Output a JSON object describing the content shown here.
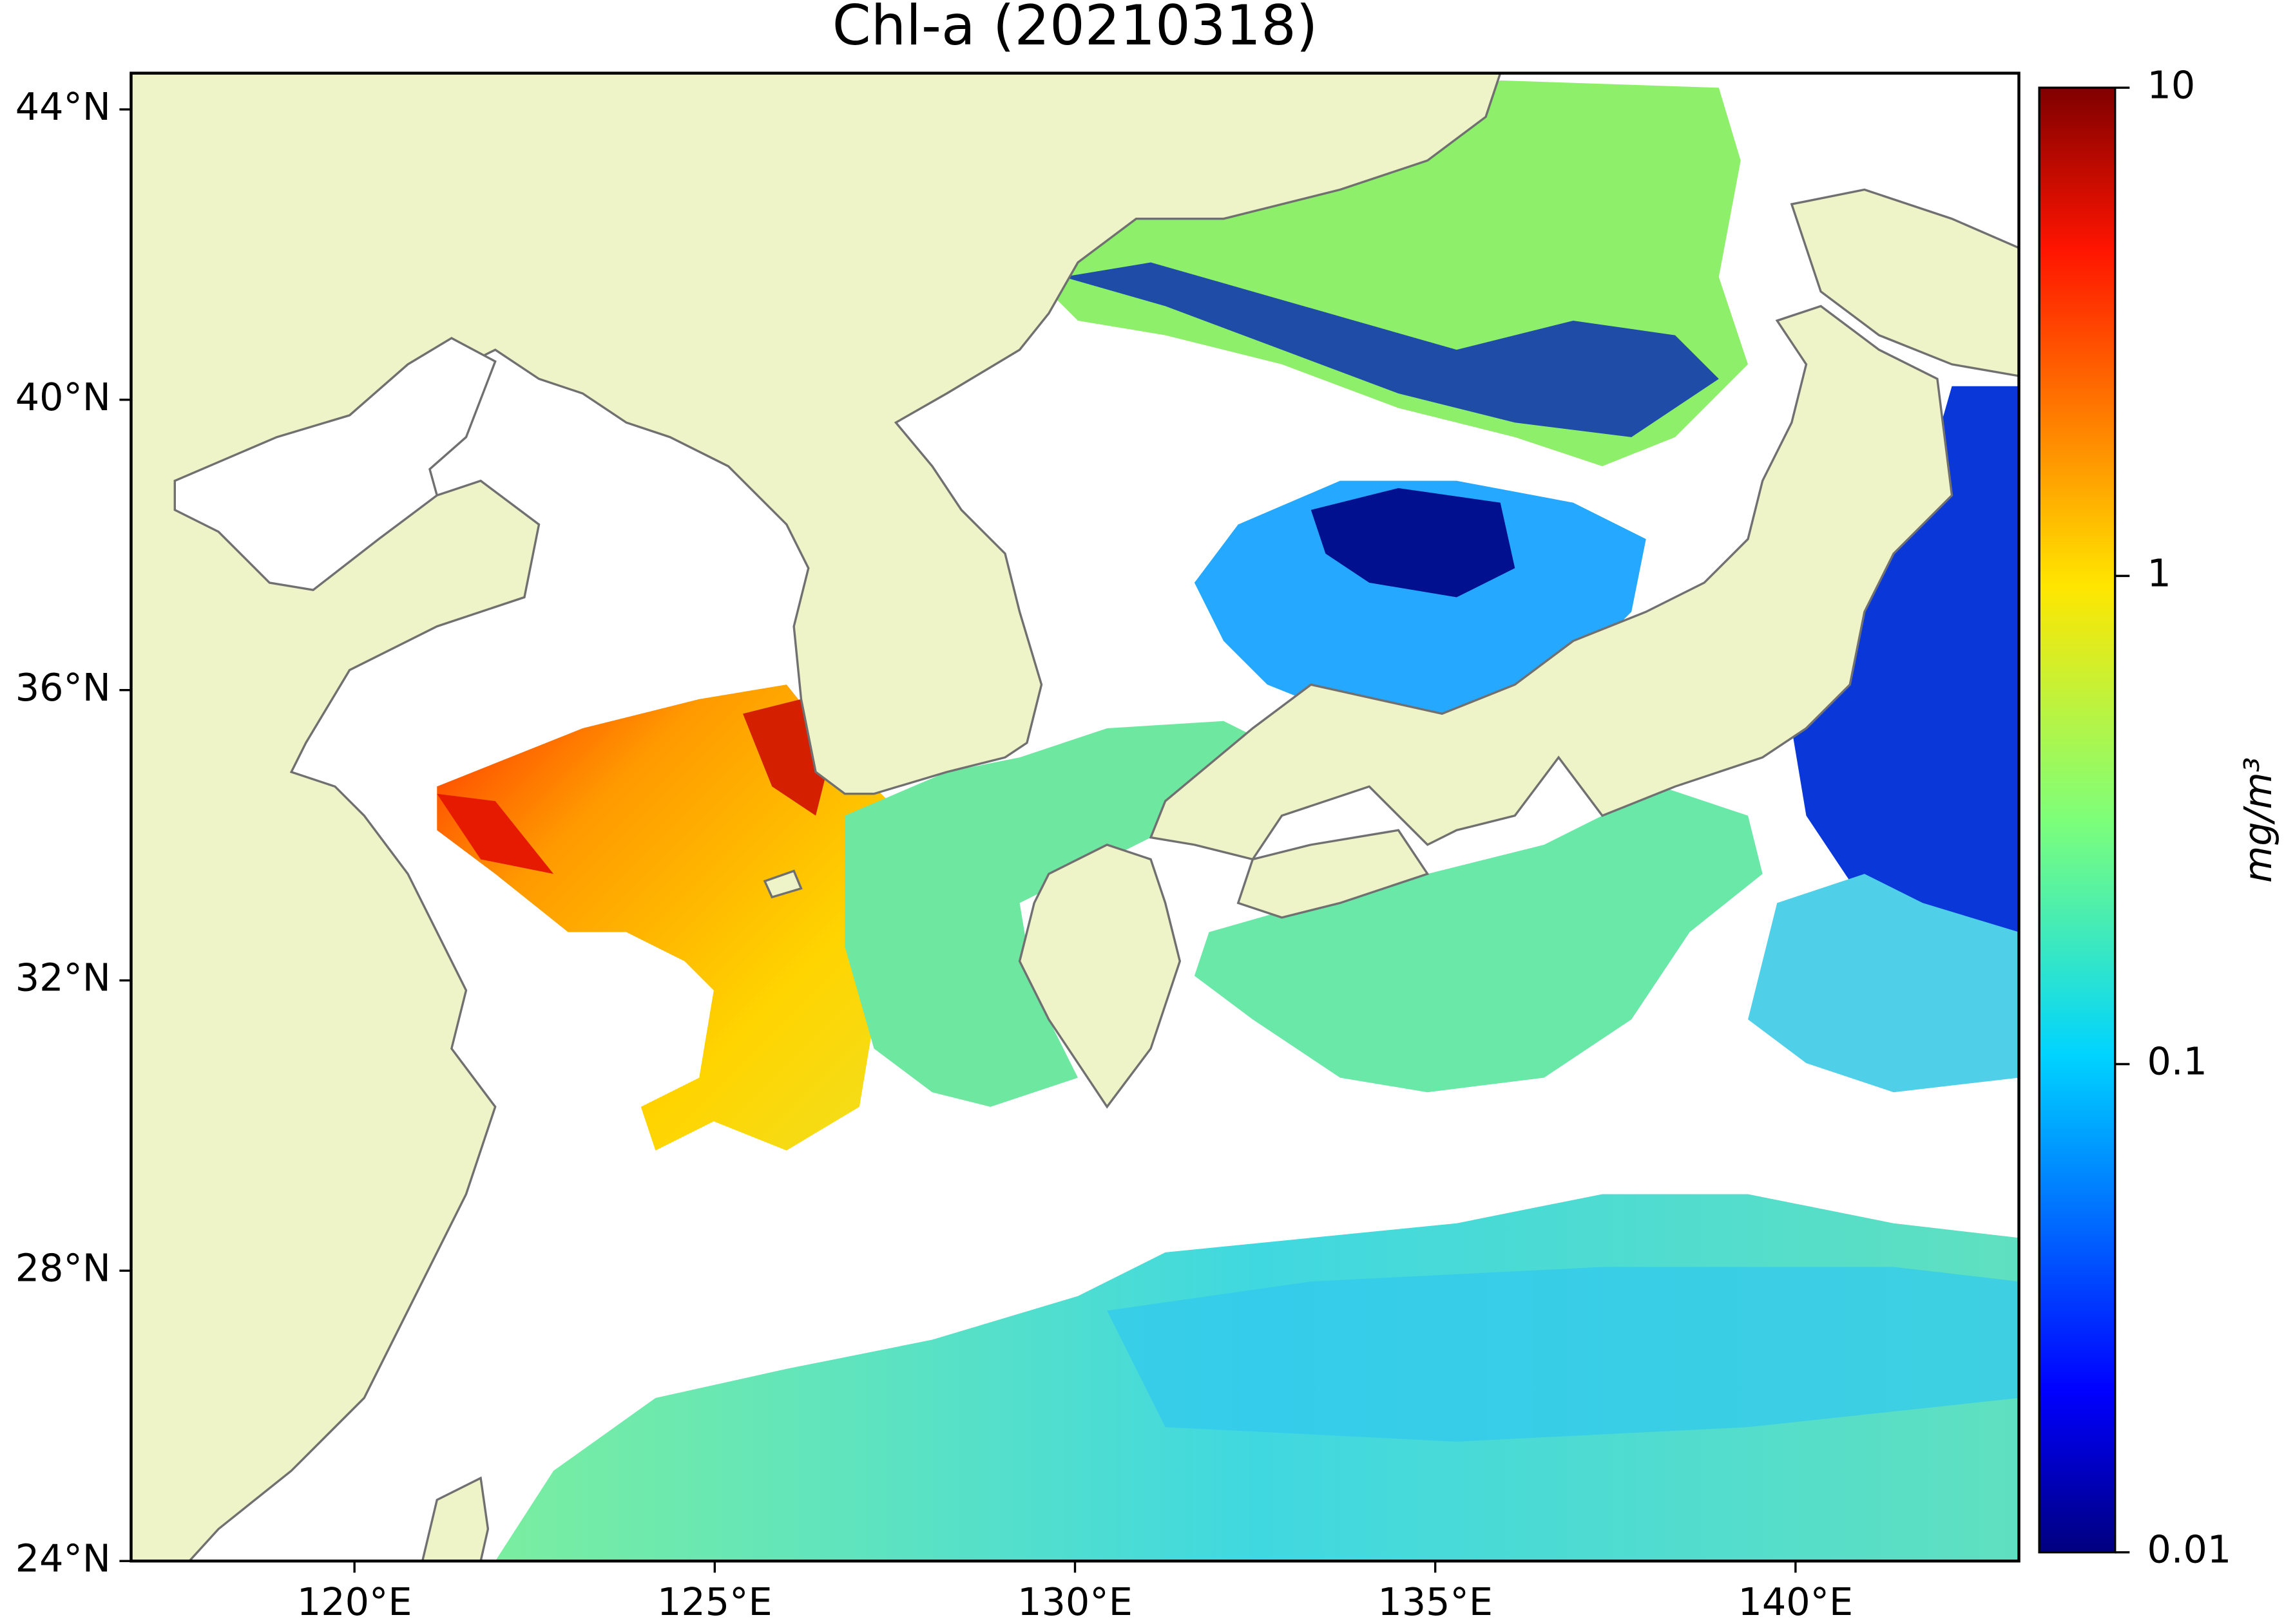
{
  "title": "Chl-a (20210318)",
  "map": {
    "xlim": [
      116.9,
      143.1
    ],
    "ylim": [
      24,
      44.5
    ],
    "xticks": [
      {
        "value": 120,
        "label": "120°E"
      },
      {
        "value": 125,
        "label": "125°E"
      },
      {
        "value": 130,
        "label": "130°E"
      },
      {
        "value": 135,
        "label": "135°E"
      },
      {
        "value": 140,
        "label": "140°E"
      }
    ],
    "yticks": [
      {
        "value": 24,
        "label": "24°N"
      },
      {
        "value": 28,
        "label": "28°N"
      },
      {
        "value": 32,
        "label": "32°N"
      },
      {
        "value": 36,
        "label": "36°N"
      },
      {
        "value": 40,
        "label": "40°N"
      },
      {
        "value": 44,
        "label": "44°N"
      }
    ]
  },
  "colorbar": {
    "label": "mg/m³",
    "scale": "log",
    "lim": [
      0.01,
      10
    ],
    "ticks": [
      0.01,
      0.1,
      1,
      10
    ]
  }
}
